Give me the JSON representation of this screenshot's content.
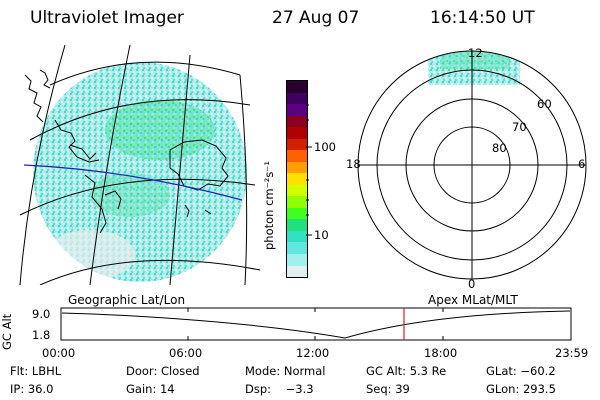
{
  "header": {
    "instrument": "Ultraviolet Imager",
    "date": "27 Aug 07",
    "time": "16:14:50 UT"
  },
  "colorbar": {
    "unit_label": "photon cm⁻²s⁻¹",
    "ticks": [
      "100",
      "10"
    ],
    "colors": [
      "#2a0030",
      "#400060",
      "#5a0080",
      "#8a0020",
      "#b00000",
      "#d02000",
      "#ff6000",
      "#ffa000",
      "#ffe000",
      "#d0ff00",
      "#90ff00",
      "#40ff20",
      "#20e080",
      "#30e0c0",
      "#60e8e0",
      "#a0f0f0",
      "#e0f0f0"
    ]
  },
  "polar_plot": {
    "mlt_labels": [
      "12",
      "18",
      "6",
      "0"
    ],
    "lat_labels": [
      "60",
      "70",
      "80"
    ]
  },
  "panel_labels": {
    "left": "Geographic Lat/Lon",
    "right": "Apex MLat/MLT"
  },
  "alt_plot": {
    "ylabel": "GC Alt",
    "yticks": [
      "9.0",
      "1.8"
    ],
    "xticks": [
      "00:00",
      "06:00",
      "12:00",
      "18:00",
      "23:59"
    ]
  },
  "status": {
    "row1": {
      "flt": "Flt: LBHL",
      "door": "Door: Closed",
      "mode": "Mode: Normal",
      "gcalt": "GC Alt: 5.3 Re",
      "glat": "GLat: −60.2"
    },
    "row2": {
      "ip": "IP: 36.0",
      "gain": "Gain: 14",
      "dsp": "Dsp:    −3.3",
      "seq": "Seq: 39",
      "glon": "GLon: 293.5"
    }
  }
}
